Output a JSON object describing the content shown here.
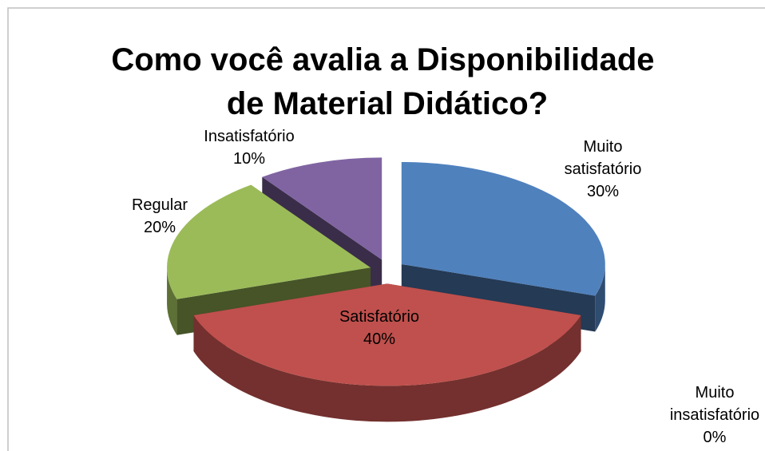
{
  "chart_data": {
    "type": "pie3d",
    "title": [
      "Como você avalia a Disponibilidade",
      "de Material Didático?"
    ],
    "categories": [
      "Muito satisfatório",
      "Satisfatório",
      "Regular",
      "Insatisfatório",
      "Muito insatisfatório"
    ],
    "values": [
      30,
      40,
      20,
      10,
      0
    ],
    "value_labels": [
      "30%",
      "40%",
      "20%",
      "10%",
      "0%"
    ],
    "colors": [
      "#4f81bd",
      "#c0504d",
      "#9bbb59",
      "#8064a2",
      "#f79646"
    ]
  }
}
